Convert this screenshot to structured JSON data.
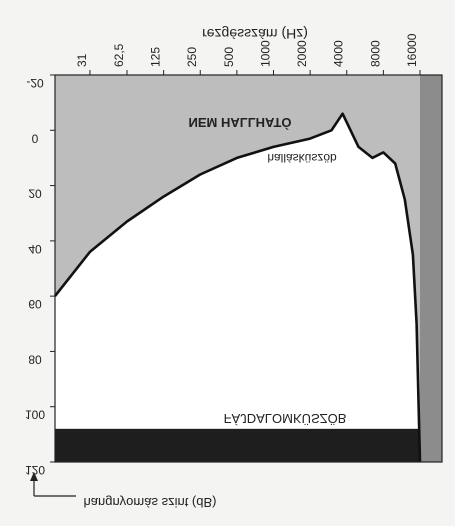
{
  "colors": {
    "background": "#f4f4f2",
    "inaudible_fill": "#bdbdbd",
    "audible_fill": "#ffffff",
    "pain_band": "#1e1e1e",
    "right_band": "#8c8c8c",
    "curve": "#111111"
  },
  "chart_data": {
    "type": "area",
    "mirrored": true,
    "xlabel": "rezgésszám (Hz)",
    "ylabel": "hangnyomás szint (dB)",
    "x_scale": "log2",
    "xlim": [
      16,
      16000
    ],
    "ylim": [
      120,
      -20
    ],
    "x_ticks": [
      "31",
      "62,5",
      "125",
      "250",
      "500",
      "1000",
      "2000",
      "4000",
      "8000",
      "16000"
    ],
    "y_ticks": [
      "-20",
      "0",
      "20",
      "40",
      "60",
      "80",
      "100",
      "120"
    ],
    "regions": [
      {
        "label": "NEM HALLHATÓ"
      },
      {
        "label": "FÁJDALOMKÜSZÖB",
        "y_range": [
          108,
          120
        ]
      }
    ],
    "series": [
      {
        "name": "hallásküszöb",
        "x": [
          16,
          31,
          62.5,
          125,
          250,
          500,
          1000,
          2000,
          3000,
          3700,
          5000,
          6500,
          8000,
          10000,
          12000,
          14000,
          15000,
          16000
        ],
        "y": [
          60,
          44,
          33,
          24,
          16,
          10,
          6,
          3,
          0,
          -6,
          6,
          10,
          8,
          12,
          25,
          45,
          70,
          120
        ]
      }
    ]
  }
}
